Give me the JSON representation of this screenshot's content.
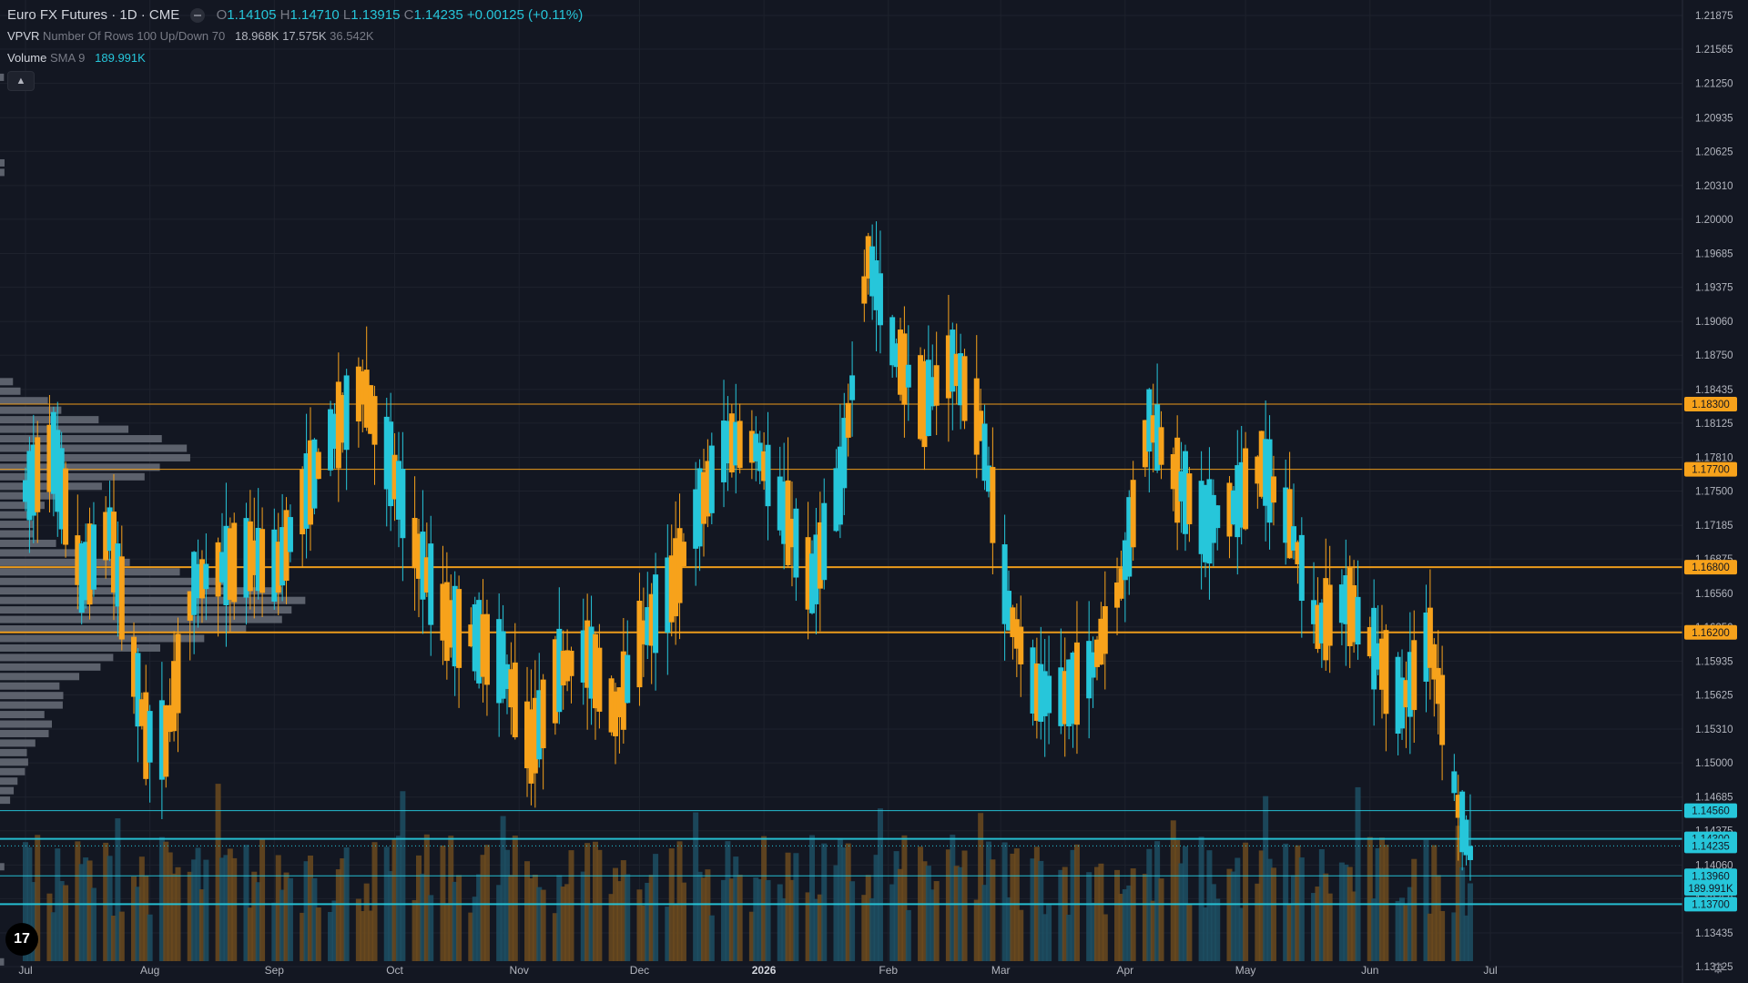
{
  "header": {
    "symbol": "Euro FX Futures · 1D · CME",
    "o_label": "O",
    "o_value": "1.14105",
    "h_label": "H",
    "h_value": "1.14710",
    "l_label": "L",
    "l_value": "1.13915",
    "c_label": "C",
    "c_value": "1.14235",
    "change": "+0.00125 (+0.11%)",
    "vpvr_name": "VPVR",
    "vpvr_params": "Number Of Rows 100 Up/Down 70",
    "vpvr_up": "18.968K",
    "vpvr_down": "17.575K",
    "vpvr_total": "36.542K",
    "volume_name": "Volume",
    "volume_params": "SMA 9",
    "volume_value": "189.991K"
  },
  "colors": {
    "background": "#131722",
    "up": "#26c6da",
    "down": "#f7a21b",
    "grid": "#1e222d",
    "text": "#b2b5be",
    "level_orange": "#f7a21b",
    "level_cyan": "#26c6da"
  },
  "chart_data": {
    "type": "candlestick",
    "x_axis_labels": [
      "Jul",
      "Aug",
      "Sep",
      "Oct",
      "Nov",
      "Dec",
      "2026",
      "Feb",
      "Mar",
      "Apr",
      "May",
      "Jun",
      "Jul"
    ],
    "y_ticks": [
      "1.21875",
      "1.21565",
      "1.21250",
      "1.20935",
      "1.20625",
      "1.20310",
      "1.20000",
      "1.19685",
      "1.19375",
      "1.19060",
      "1.18750",
      "1.18435",
      "1.18125",
      "1.17810",
      "1.17500",
      "1.17185",
      "1.16875",
      "1.16560",
      "1.16250",
      "1.15935",
      "1.15625",
      "1.15310",
      "1.15000",
      "1.14685",
      "1.14375",
      "1.14060",
      "1.13750",
      "1.13435",
      "1.13125"
    ],
    "ylim": [
      1.1295,
      1.2202
    ],
    "horizontal_levels": [
      {
        "price": 1.183,
        "label": "1.18300",
        "color": "orange",
        "width": 1
      },
      {
        "price": 1.177,
        "label": "1.17700",
        "color": "orange",
        "width": 1
      },
      {
        "price": 1.168,
        "label": "1.16800",
        "color": "orange",
        "width": 2
      },
      {
        "price": 1.162,
        "label": "1.16200",
        "color": "orange",
        "width": 2
      },
      {
        "price": 1.1456,
        "label": "1.14560",
        "color": "cyan",
        "width": 1
      },
      {
        "price": 1.143,
        "label": "1.14300",
        "color": "cyan",
        "width": 2
      },
      {
        "price": 1.1396,
        "label": "1.13960",
        "color": "cyan",
        "width": 1
      },
      {
        "price": 1.137,
        "label": "1.13700",
        "color": "cyan",
        "width": 2
      }
    ],
    "last_price": {
      "price": 1.14235,
      "label": "1.14235"
    },
    "volume_sma_label": "189.991K",
    "anchors": [
      [
        "2025-07-01",
        1.17,
        1.18,
        "down"
      ],
      [
        "2025-07-08",
        1.176,
        1.181,
        "down"
      ],
      [
        "2025-07-15",
        1.172,
        1.162,
        "down"
      ],
      [
        "2025-07-22",
        1.168,
        1.175,
        "up"
      ],
      [
        "2025-07-31",
        1.16,
        1.145,
        "down"
      ],
      [
        "2025-08-05",
        1.146,
        1.158,
        "up"
      ],
      [
        "2025-08-12",
        1.163,
        1.17,
        "up"
      ],
      [
        "2025-08-19",
        1.17,
        1.166,
        "down"
      ],
      [
        "2025-08-26",
        1.166,
        1.172,
        "up"
      ],
      [
        "2025-09-02",
        1.165,
        1.171,
        "up"
      ],
      [
        "2025-09-09",
        1.174,
        1.176,
        "up"
      ],
      [
        "2025-09-16",
        1.175,
        1.186,
        "up"
      ],
      [
        "2025-09-23",
        1.187,
        1.182,
        "down"
      ],
      [
        "2025-09-30",
        1.176,
        1.179,
        "up"
      ],
      [
        "2025-10-07",
        1.172,
        1.166,
        "down"
      ],
      [
        "2025-10-14",
        1.162,
        1.164,
        "up"
      ],
      [
        "2025-10-21",
        1.163,
        1.16,
        "down"
      ],
      [
        "2025-10-28",
        1.162,
        1.156,
        "down"
      ],
      [
        "2025-11-04",
        1.153,
        1.15,
        "down"
      ],
      [
        "2025-11-11",
        1.157,
        1.16,
        "up"
      ],
      [
        "2025-11-18",
        1.162,
        1.158,
        "down"
      ],
      [
        "2025-11-25",
        1.153,
        1.156,
        "up"
      ],
      [
        "2025-12-02",
        1.16,
        1.164,
        "up"
      ],
      [
        "2025-12-09",
        1.164,
        1.168,
        "up"
      ],
      [
        "2025-12-16",
        1.172,
        1.175,
        "up"
      ],
      [
        "2025-12-23",
        1.178,
        1.181,
        "up"
      ],
      [
        "2025-12-30",
        1.18,
        1.178,
        "down"
      ],
      [
        "2026-01-06",
        1.176,
        1.17,
        "down"
      ],
      [
        "2026-01-13",
        1.168,
        1.165,
        "down"
      ],
      [
        "2026-01-20",
        1.173,
        1.178,
        "up"
      ],
      [
        "2026-01-27",
        1.19,
        1.203,
        "down"
      ],
      [
        "2026-02-03",
        1.19,
        1.185,
        "down"
      ],
      [
        "2026-02-10",
        1.184,
        1.182,
        "down"
      ],
      [
        "2026-02-17",
        1.192,
        1.182,
        "down"
      ],
      [
        "2026-02-24",
        1.18,
        1.182,
        "up"
      ],
      [
        "2026-03-03",
        1.168,
        1.16,
        "down"
      ],
      [
        "2026-03-10",
        1.158,
        1.155,
        "down"
      ],
      [
        "2026-03-17",
        1.16,
        1.152,
        "down"
      ],
      [
        "2026-03-24",
        1.16,
        1.158,
        "down"
      ],
      [
        "2026-03-31",
        1.163,
        1.17,
        "up"
      ],
      [
        "2026-04-07",
        1.18,
        1.183,
        "up"
      ],
      [
        "2026-04-14",
        1.178,
        1.174,
        "down"
      ],
      [
        "2026-04-21",
        1.171,
        1.173,
        "up"
      ],
      [
        "2026-04-28",
        1.175,
        1.172,
        "down"
      ],
      [
        "2026-05-05",
        1.176,
        1.179,
        "up"
      ],
      [
        "2026-05-12",
        1.176,
        1.168,
        "down"
      ],
      [
        "2026-05-19",
        1.163,
        1.162,
        "down"
      ],
      [
        "2026-05-26",
        1.164,
        1.166,
        "up"
      ],
      [
        "2026-06-02",
        1.162,
        1.159,
        "down"
      ],
      [
        "2026-06-09",
        1.154,
        1.157,
        "up"
      ],
      [
        "2026-06-16",
        1.165,
        1.158,
        "down"
      ],
      [
        "2026-06-23",
        1.15,
        1.142,
        "down"
      ],
      [
        "2026-06-26",
        1.141,
        1.1424,
        "up"
      ]
    ],
    "volume_profile_bias": "heaviest between 1.160 and 1.168 and around 1.178"
  }
}
